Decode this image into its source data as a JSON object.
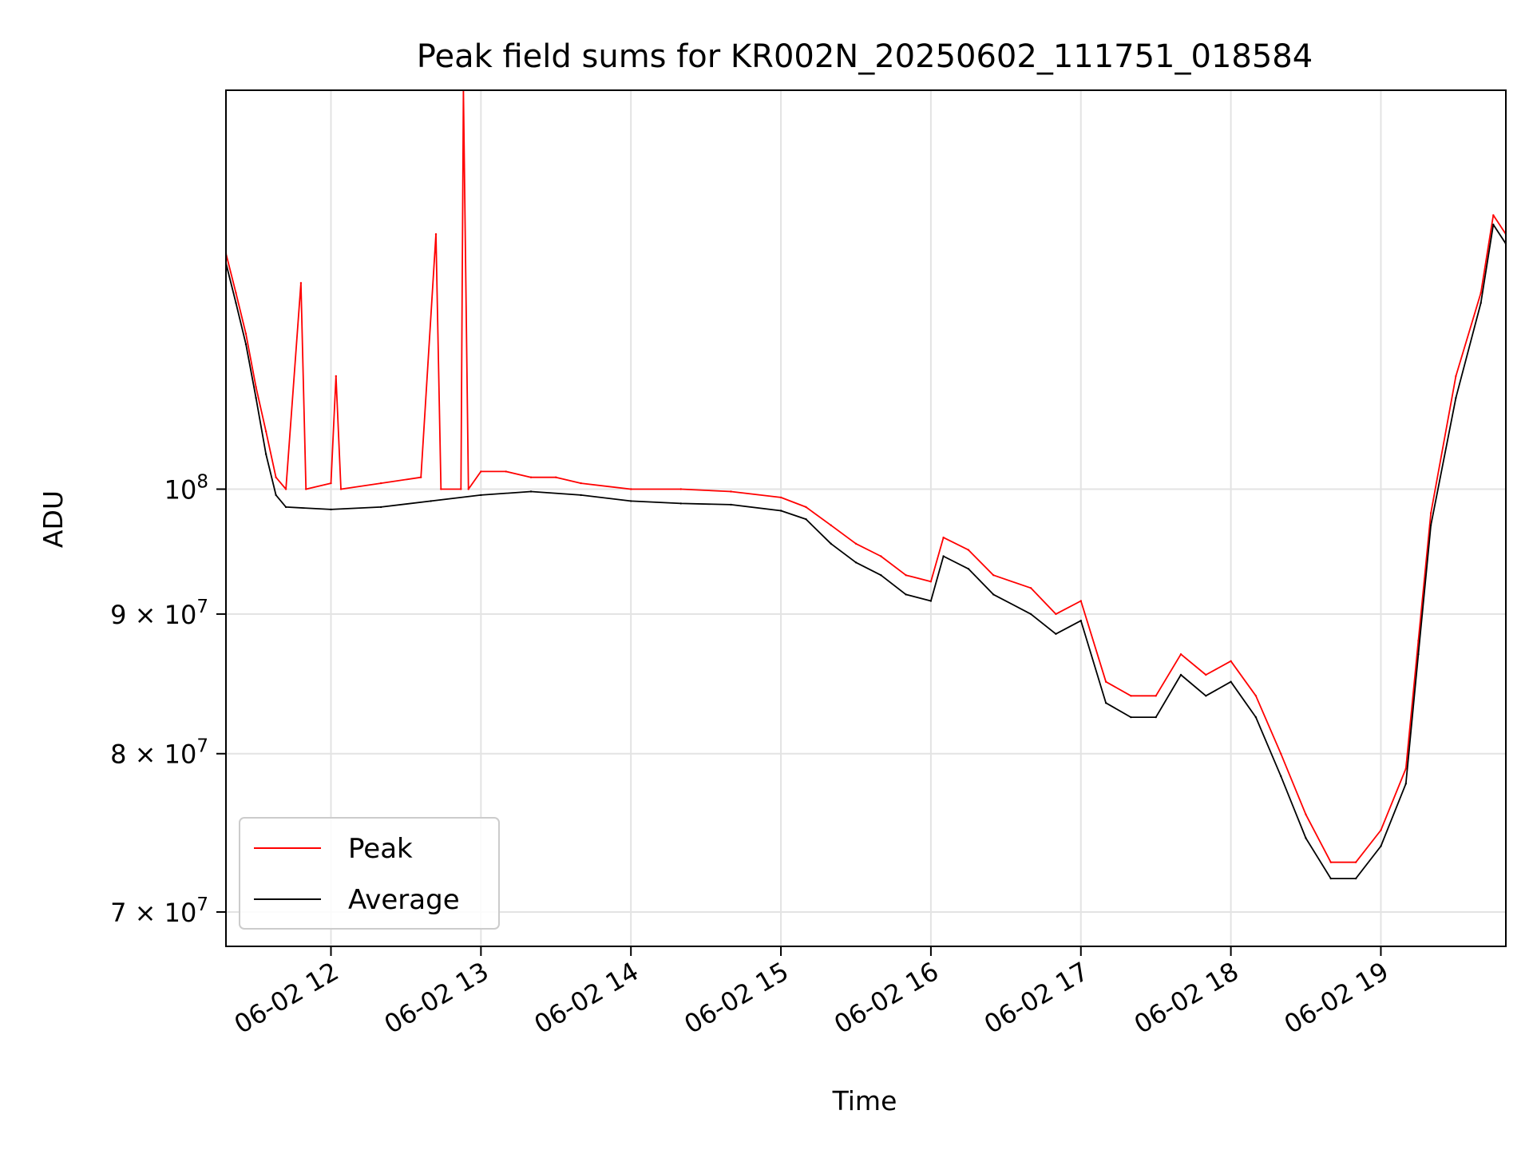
{
  "chart_data": {
    "type": "line",
    "title": "Peak field sums for KR002N_20250602_111751_018584",
    "xlabel": "Time",
    "ylabel": "ADU",
    "x_scale": "time",
    "y_scale": "log",
    "xlim": [
      "2025-06-02 11:18",
      "2025-06-02 19:50"
    ],
    "ylim": [
      68000000,
      140000000
    ],
    "grid": true,
    "legend_position": "lower-left",
    "x_ticks": [
      {
        "value": "2025-06-02 12:00",
        "label": "06-02 12"
      },
      {
        "value": "2025-06-02 13:00",
        "label": "06-02 13"
      },
      {
        "value": "2025-06-02 14:00",
        "label": "06-02 14"
      },
      {
        "value": "2025-06-02 15:00",
        "label": "06-02 15"
      },
      {
        "value": "2025-06-02 16:00",
        "label": "06-02 16"
      },
      {
        "value": "2025-06-02 17:00",
        "label": "06-02 17"
      },
      {
        "value": "2025-06-02 18:00",
        "label": "06-02 18"
      },
      {
        "value": "2025-06-02 19:00",
        "label": "06-02 19"
      }
    ],
    "y_ticks": [
      {
        "value": 70000000,
        "mantissa": "7",
        "times": "×",
        "base": "10",
        "exp": "7"
      },
      {
        "value": 80000000,
        "mantissa": "8",
        "times": "×",
        "base": "10",
        "exp": "7"
      },
      {
        "value": 90000000,
        "mantissa": "9",
        "times": "×",
        "base": "10",
        "exp": "7"
      },
      {
        "value": 100000000,
        "mantissa": "",
        "times": "",
        "base": "10",
        "exp": "8"
      }
    ],
    "series": [
      {
        "name": "Peak",
        "color": "#ff0000",
        "points": [
          [
            "2025-06-02 11:18",
            122000000
          ],
          [
            "2025-06-02 11:22",
            118000000
          ],
          [
            "2025-06-02 11:26",
            114000000
          ],
          [
            "2025-06-02 11:30",
            109000000
          ],
          [
            "2025-06-02 11:34",
            105000000
          ],
          [
            "2025-06-02 11:38",
            101000000
          ],
          [
            "2025-06-02 11:42",
            100000000
          ],
          [
            "2025-06-02 11:48",
            119000000
          ],
          [
            "2025-06-02 11:50",
            100000000
          ],
          [
            "2025-06-02 12:00",
            100500000
          ],
          [
            "2025-06-02 12:02",
            110000000
          ],
          [
            "2025-06-02 12:04",
            100000000
          ],
          [
            "2025-06-02 12:20",
            100500000
          ],
          [
            "2025-06-02 12:36",
            101000000
          ],
          [
            "2025-06-02 12:42",
            124000000
          ],
          [
            "2025-06-02 12:44",
            100000000
          ],
          [
            "2025-06-02 12:52",
            100000000
          ],
          [
            "2025-06-02 12:53",
            140000000
          ],
          [
            "2025-06-02 12:55",
            100000000
          ],
          [
            "2025-06-02 13:00",
            101500000
          ],
          [
            "2025-06-02 13:10",
            101500000
          ],
          [
            "2025-06-02 13:20",
            101000000
          ],
          [
            "2025-06-02 13:30",
            101000000
          ],
          [
            "2025-06-02 13:40",
            100500000
          ],
          [
            "2025-06-02 14:00",
            100000000
          ],
          [
            "2025-06-02 14:20",
            100000000
          ],
          [
            "2025-06-02 14:40",
            99800000
          ],
          [
            "2025-06-02 15:00",
            99300000
          ],
          [
            "2025-06-02 15:10",
            98500000
          ],
          [
            "2025-06-02 15:20",
            97000000
          ],
          [
            "2025-06-02 15:30",
            95500000
          ],
          [
            "2025-06-02 15:40",
            94500000
          ],
          [
            "2025-06-02 15:50",
            93000000
          ],
          [
            "2025-06-02 16:00",
            92500000
          ],
          [
            "2025-06-02 16:05",
            96000000
          ],
          [
            "2025-06-02 16:15",
            95000000
          ],
          [
            "2025-06-02 16:25",
            93000000
          ],
          [
            "2025-06-02 16:40",
            92000000
          ],
          [
            "2025-06-02 16:50",
            90000000
          ],
          [
            "2025-06-02 17:00",
            91000000
          ],
          [
            "2025-06-02 17:10",
            85000000
          ],
          [
            "2025-06-02 17:20",
            84000000
          ],
          [
            "2025-06-02 17:30",
            84000000
          ],
          [
            "2025-06-02 17:40",
            87000000
          ],
          [
            "2025-06-02 17:50",
            85500000
          ],
          [
            "2025-06-02 18:00",
            86500000
          ],
          [
            "2025-06-02 18:10",
            84000000
          ],
          [
            "2025-06-02 18:20",
            80000000
          ],
          [
            "2025-06-02 18:30",
            76000000
          ],
          [
            "2025-06-02 18:40",
            73000000
          ],
          [
            "2025-06-02 18:50",
            73000000
          ],
          [
            "2025-06-02 19:00",
            75000000
          ],
          [
            "2025-06-02 19:10",
            79000000
          ],
          [
            "2025-06-02 19:15",
            88000000
          ],
          [
            "2025-06-02 19:20",
            98000000
          ],
          [
            "2025-06-02 19:30",
            110000000
          ],
          [
            "2025-06-02 19:40",
            118000000
          ],
          [
            "2025-06-02 19:45",
            126000000
          ],
          [
            "2025-06-02 19:50",
            124000000
          ]
        ]
      },
      {
        "name": "Average",
        "color": "#000000",
        "points": [
          [
            "2025-06-02 11:18",
            121000000
          ],
          [
            "2025-06-02 11:22",
            117000000
          ],
          [
            "2025-06-02 11:26",
            113000000
          ],
          [
            "2025-06-02 11:30",
            108000000
          ],
          [
            "2025-06-02 11:34",
            103000000
          ],
          [
            "2025-06-02 11:38",
            99500000
          ],
          [
            "2025-06-02 11:42",
            98500000
          ],
          [
            "2025-06-02 12:00",
            98300000
          ],
          [
            "2025-06-02 12:20",
            98500000
          ],
          [
            "2025-06-02 12:40",
            99000000
          ],
          [
            "2025-06-02 13:00",
            99500000
          ],
          [
            "2025-06-02 13:20",
            99800000
          ],
          [
            "2025-06-02 13:40",
            99500000
          ],
          [
            "2025-06-02 14:00",
            99000000
          ],
          [
            "2025-06-02 14:20",
            98800000
          ],
          [
            "2025-06-02 14:40",
            98700000
          ],
          [
            "2025-06-02 15:00",
            98200000
          ],
          [
            "2025-06-02 15:10",
            97500000
          ],
          [
            "2025-06-02 15:20",
            95500000
          ],
          [
            "2025-06-02 15:30",
            94000000
          ],
          [
            "2025-06-02 15:40",
            93000000
          ],
          [
            "2025-06-02 15:50",
            91500000
          ],
          [
            "2025-06-02 16:00",
            91000000
          ],
          [
            "2025-06-02 16:05",
            94500000
          ],
          [
            "2025-06-02 16:15",
            93500000
          ],
          [
            "2025-06-02 16:25",
            91500000
          ],
          [
            "2025-06-02 16:40",
            90000000
          ],
          [
            "2025-06-02 16:50",
            88500000
          ],
          [
            "2025-06-02 17:00",
            89500000
          ],
          [
            "2025-06-02 17:10",
            83500000
          ],
          [
            "2025-06-02 17:20",
            82500000
          ],
          [
            "2025-06-02 17:30",
            82500000
          ],
          [
            "2025-06-02 17:40",
            85500000
          ],
          [
            "2025-06-02 17:50",
            84000000
          ],
          [
            "2025-06-02 18:00",
            85000000
          ],
          [
            "2025-06-02 18:10",
            82500000
          ],
          [
            "2025-06-02 18:20",
            78500000
          ],
          [
            "2025-06-02 18:30",
            74500000
          ],
          [
            "2025-06-02 18:40",
            72000000
          ],
          [
            "2025-06-02 18:50",
            72000000
          ],
          [
            "2025-06-02 19:00",
            74000000
          ],
          [
            "2025-06-02 19:10",
            78000000
          ],
          [
            "2025-06-02 19:15",
            87000000
          ],
          [
            "2025-06-02 19:20",
            97000000
          ],
          [
            "2025-06-02 19:30",
            108000000
          ],
          [
            "2025-06-02 19:40",
            117000000
          ],
          [
            "2025-06-02 19:45",
            125000000
          ],
          [
            "2025-06-02 19:50",
            123000000
          ]
        ]
      }
    ]
  }
}
